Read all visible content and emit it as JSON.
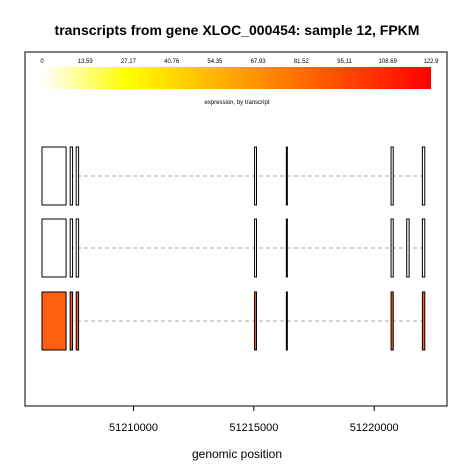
{
  "chart_data": {
    "type": "gene-transcript-expression",
    "title": "transcripts from gene XLOC_000454: sample 12, FPKM",
    "xlabel": "genomic position",
    "xlim": [
      51206200,
      51222400
    ],
    "x_ticks": [
      51210000,
      51215000,
      51220000
    ],
    "x_tick_labels": [
      "51210000",
      "51215000",
      "51220000"
    ],
    "color_scale": {
      "caption": "expression, by transcript",
      "min": 0,
      "max": 122.9,
      "tick_labels": [
        "0",
        "13.59",
        "27.17",
        "40.76",
        "54.35",
        "67.93",
        "81.52",
        "95.11",
        "108.69",
        "122.9"
      ],
      "colors": [
        "#ffffff",
        "#ffff00",
        "#ff0000"
      ]
    },
    "transcripts": [
      {
        "expression": 0,
        "fill": "#ffffff",
        "exons": [
          [
            51206200,
            51207200
          ],
          [
            51207370,
            51207470
          ],
          [
            51207620,
            51207720
          ],
          [
            51215030,
            51215110
          ],
          [
            51216350,
            51216390
          ],
          [
            51220700,
            51220790
          ],
          [
            51222000,
            51222100
          ]
        ]
      },
      {
        "expression": 0,
        "fill": "#ffffff",
        "exons": [
          [
            51206200,
            51207200
          ],
          [
            51207370,
            51207470
          ],
          [
            51207620,
            51207720
          ],
          [
            51215030,
            51215110
          ],
          [
            51216350,
            51216390
          ],
          [
            51220700,
            51220790
          ],
          [
            51221350,
            51221450
          ],
          [
            51222000,
            51222100
          ]
        ]
      },
      {
        "expression": 67.93,
        "fill": "#ff6010",
        "exons": [
          [
            51206200,
            51207200
          ],
          [
            51207370,
            51207470
          ],
          [
            51207620,
            51207720
          ],
          [
            51215030,
            51215110
          ],
          [
            51216350,
            51216390
          ],
          [
            51220700,
            51220790
          ],
          [
            51222000,
            51222100
          ]
        ]
      }
    ]
  }
}
